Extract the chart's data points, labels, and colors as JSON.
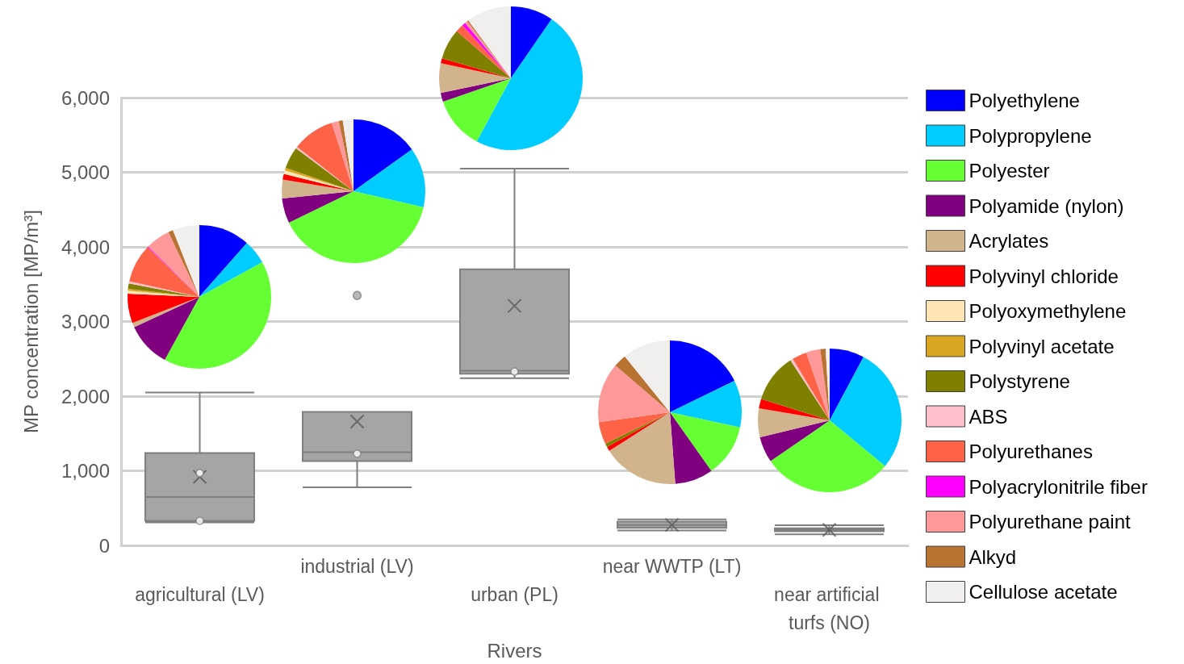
{
  "chart_data": [
    {
      "type": "box",
      "xlabel": "Rivers",
      "ylabel": "MP concentration [MP/m³]",
      "categories": [
        "agricultural (LV)",
        "industrial (LV)",
        "urban (PL)",
        "near WWTP (LT)",
        "near artificial turfs (NO)"
      ],
      "boxes": [
        {
          "low": 310,
          "q1": 330,
          "median": 650,
          "q3": 1240,
          "high": 2050,
          "mean": 920
        },
        {
          "low": 780,
          "q1": 1130,
          "median": 1250,
          "q3": 1790,
          "high": 1790,
          "mean": 1660,
          "outliers": [
            3350
          ]
        },
        {
          "low": 2240,
          "q1": 2300,
          "median": 2340,
          "q3": 3700,
          "high": 5050,
          "mean": 3210
        },
        {
          "low": 200,
          "q1": 235,
          "median": 275,
          "q3": 320,
          "high": 350,
          "mean": 275
        },
        {
          "low": 150,
          "q1": 190,
          "median": 210,
          "q3": 230,
          "high": 270,
          "mean": 210
        }
      ],
      "series": [
        {
          "type": "scatter",
          "marker": "circle",
          "x": [
            "agricultural (LV)",
            "agricultural (LV)",
            "industrial (LV)",
            "urban (PL)"
          ],
          "values": [
            330,
            970,
            1230,
            2330
          ]
        }
      ],
      "ylim": [
        0,
        6000
      ],
      "yticks": [
        {
          "value": 0,
          "label": "0"
        },
        {
          "value": 1000,
          "label": "1,000"
        },
        {
          "value": 2000,
          "label": "2,000"
        },
        {
          "value": 3000,
          "label": "3,000"
        },
        {
          "value": 4000,
          "label": "4,000"
        },
        {
          "value": 5000,
          "label": "5,000"
        },
        {
          "value": 6000,
          "label": "6,000"
        }
      ],
      "grid": "y",
      "legend": false
    },
    {
      "type": "pie",
      "legend": "right",
      "categories": [
        "Polyethylene",
        "Polypropylene",
        "Polyester",
        "Polyamide (nylon)",
        "Acrylates",
        "Polyvinyl chloride",
        "Polyoxymethylene",
        "Polyvinyl acetate",
        "Polystyrene",
        "ABS",
        "Polyurethanes",
        "Polyacrylonitrile fiber",
        "Polyurethane paint",
        "Alkyd",
        "Cellulose acetate"
      ],
      "colors": [
        "#0000ff",
        "#00ccff",
        "#66ff33",
        "#800080",
        "#d2b48c",
        "#ff0000",
        "#ffe4b5",
        "#daa520",
        "#808000",
        "#ffc0cb",
        "#ff6347",
        "#ff00ff",
        "#ff9999",
        "#b87333",
        "#f0efed"
      ],
      "series": [
        {
          "values": [
            11.5,
            5.5,
            41,
            10.1,
            1,
            6.6,
            0.7,
            0.4,
            1.2,
            0.5,
            8.7,
            0.2,
            5.5,
            1.1,
            6.0
          ]
        },
        {
          "values": [
            15.1,
            13.5,
            39.2,
            5.6,
            4.2,
            1.3,
            0.8,
            0.6,
            4.9,
            0.4,
            9.5,
            0,
            1.6,
            0.9,
            2.4
          ]
        },
        {
          "values": [
            9.6,
            48.3,
            11.8,
            2,
            6.7,
            1.1,
            0,
            0,
            6.9,
            0,
            1.8,
            0.8,
            0.6,
            0.3,
            10.1
          ]
        },
        {
          "values": [
            17.8,
            10.6,
            11.8,
            8.6,
            17.2,
            1,
            0,
            0,
            0.8,
            0,
            5,
            0,
            13.5,
            2.9,
            10.8
          ]
        },
        {
          "values": [
            7.8,
            28.2,
            29.4,
            5.8,
            6.5,
            2.1,
            0,
            0,
            11,
            0.6,
            3.3,
            0,
            3.2,
            1.2,
            0.9
          ]
        }
      ]
    }
  ]
}
